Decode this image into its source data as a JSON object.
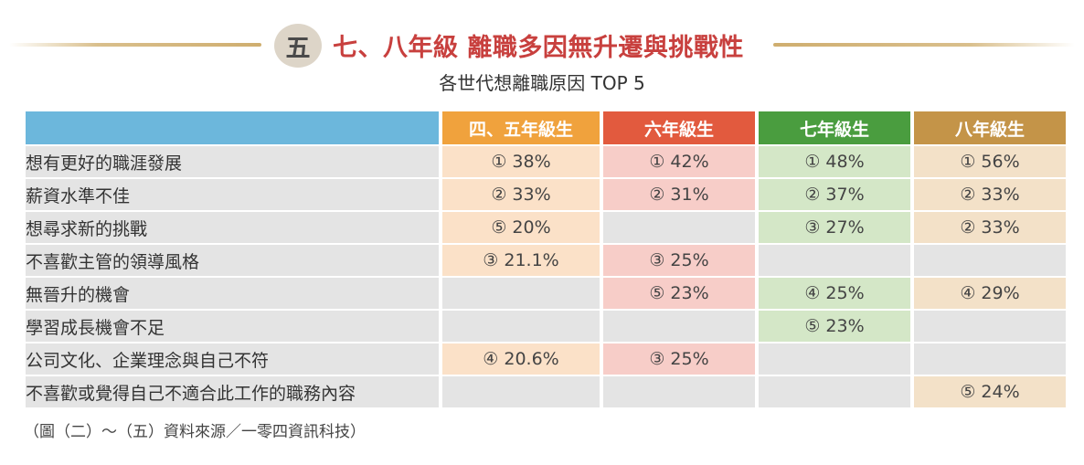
{
  "header": {
    "section_number": "五",
    "title": "七、八年級 離職多因無升遷與挑戰性",
    "subtitle": "各世代想離職原因 TOP 5"
  },
  "colors": {
    "label_header": "#6cb7dc",
    "label_row": "#e4e4e4",
    "empty_cell": "#e4e4e4",
    "title_red": "#c8403e",
    "gold_line": "#d4b47a"
  },
  "chart_data": {
    "type": "table",
    "title": "各世代想離職原因 TOP 5",
    "columns": [
      {
        "name": "四、五年級生",
        "color": "#f0a23d",
        "cell_color": "#fbe1c8"
      },
      {
        "name": "六年級生",
        "color": "#e25a3e",
        "cell_color": "#f7cdc8"
      },
      {
        "name": "七年級生",
        "color": "#4a9d3f",
        "cell_color": "#d4e7c7"
      },
      {
        "name": "八年級生",
        "color": "#c49448",
        "cell_color": "#f3e1c8"
      }
    ],
    "rows": [
      {
        "label": "想有更好的職涯發展",
        "values": [
          "① 38%",
          "① 42%",
          "① 48%",
          "① 56%"
        ]
      },
      {
        "label": "薪資水準不佳",
        "values": [
          "② 33%",
          "② 31%",
          "② 37%",
          "② 33%"
        ]
      },
      {
        "label": "想尋求新的挑戰",
        "values": [
          "⑤ 20%",
          "",
          "③ 27%",
          "② 33%"
        ]
      },
      {
        "label": "不喜歡主管的領導風格",
        "values": [
          "③ 21.1%",
          "③ 25%",
          "",
          ""
        ]
      },
      {
        "label": "無晉升的機會",
        "values": [
          "",
          "⑤ 23%",
          "④ 25%",
          "④ 29%"
        ]
      },
      {
        "label": "學習成長機會不足",
        "values": [
          "",
          "",
          "⑤ 23%",
          ""
        ]
      },
      {
        "label": "公司文化、企業理念與自己不符",
        "values": [
          "④ 20.6%",
          "③ 25%",
          "",
          ""
        ]
      },
      {
        "label": "不喜歡或覺得自己不適合此工作的職務內容",
        "values": [
          "",
          "",
          "",
          "⑤ 24%"
        ]
      }
    ]
  },
  "footer": {
    "source": "（圖（二）～（五）資料來源／一零四資訊科技）"
  }
}
